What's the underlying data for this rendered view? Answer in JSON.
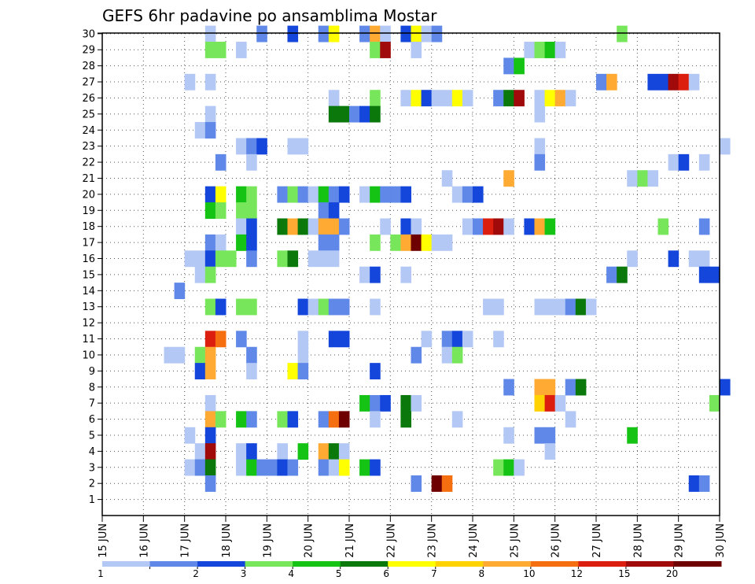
{
  "chart_data": {
    "type": "heatmap",
    "title": "GEFS 6hr padavine po ansamblima Mostar",
    "xlabel": "",
    "ylabel": "",
    "x_ticks": [
      "15 JUN",
      "16 JUN",
      "17 JUN",
      "18 JUN",
      "19 JUN",
      "20 JUN",
      "21 JUN",
      "22 JUN",
      "23 JUN",
      "24 JUN",
      "25 JUN",
      "26 JUN",
      "27 JUN",
      "28 JUN",
      "29 JUN",
      "30 JUN"
    ],
    "x_range_days": [
      15,
      30
    ],
    "y_ticks": [
      "1",
      "2",
      "3",
      "4",
      "5",
      "6",
      "7",
      "8",
      "9",
      "10",
      "11",
      "12",
      "13",
      "14",
      "15",
      "16",
      "17",
      "18",
      "19",
      "20",
      "21",
      "22",
      "23",
      "24",
      "25",
      "26",
      "27",
      "28",
      "29",
      "30"
    ],
    "y_range": [
      0,
      30
    ],
    "grid": true,
    "colorbar": {
      "levels": [
        "1",
        "2",
        "3",
        "4",
        "5",
        "6",
        "7",
        "8",
        "10",
        "12",
        "15",
        "20"
      ],
      "colors": [
        "#b4c8f5",
        "#5f88e8",
        "#1446dc",
        "#78e65a",
        "#14c314",
        "#0a780a",
        "#ffff00",
        "#ffd200",
        "#ffaa32",
        "#f56e0f",
        "#dc1e0f",
        "#a00a0a",
        "#6e0000"
      ]
    },
    "cells_note": "each cell: [start_day, member, color_class_index]",
    "cells": [
      [
        17.5,
        30,
        0
      ],
      [
        18.75,
        30,
        1
      ],
      [
        19.5,
        30,
        2
      ],
      [
        20.25,
        30,
        1
      ],
      [
        20.5,
        30,
        6
      ],
      [
        21.25,
        30,
        1
      ],
      [
        21.5,
        30,
        8
      ],
      [
        21.75,
        30,
        0
      ],
      [
        22.25,
        30,
        2
      ],
      [
        22.5,
        30,
        6
      ],
      [
        22.75,
        30,
        0
      ],
      [
        23,
        30,
        1
      ],
      [
        27.5,
        30,
        3
      ],
      [
        17.5,
        29,
        3
      ],
      [
        17.75,
        29,
        3
      ],
      [
        18.25,
        29,
        0
      ],
      [
        21.5,
        29,
        3
      ],
      [
        21.75,
        29,
        11
      ],
      [
        22.5,
        29,
        0
      ],
      [
        25.25,
        29,
        0
      ],
      [
        25.5,
        29,
        3
      ],
      [
        25.75,
        29,
        4
      ],
      [
        26,
        29,
        0
      ],
      [
        24.75,
        28,
        1
      ],
      [
        25,
        28,
        4
      ],
      [
        17,
        27,
        0
      ],
      [
        17.5,
        27,
        0
      ],
      [
        27,
        27,
        1
      ],
      [
        27.25,
        27,
        8
      ],
      [
        28.25,
        27,
        2
      ],
      [
        28.5,
        27,
        2
      ],
      [
        28.75,
        27,
        11
      ],
      [
        29,
        27,
        10
      ],
      [
        29.25,
        27,
        0
      ],
      [
        20.5,
        26,
        0
      ],
      [
        21.5,
        26,
        3
      ],
      [
        22.25,
        26,
        0
      ],
      [
        22.5,
        26,
        6
      ],
      [
        22.75,
        26,
        2
      ],
      [
        23,
        26,
        0
      ],
      [
        23.25,
        26,
        0
      ],
      [
        23.5,
        26,
        6
      ],
      [
        23.75,
        26,
        0
      ],
      [
        24.5,
        26,
        1
      ],
      [
        24.75,
        26,
        5
      ],
      [
        25,
        26,
        11
      ],
      [
        25.5,
        26,
        0
      ],
      [
        25.75,
        26,
        6
      ],
      [
        26,
        26,
        8
      ],
      [
        26.25,
        26,
        0
      ],
      [
        17.5,
        25,
        0
      ],
      [
        20.5,
        25,
        5
      ],
      [
        20.75,
        25,
        5
      ],
      [
        21,
        25,
        1
      ],
      [
        21.25,
        25,
        2
      ],
      [
        21.5,
        25,
        5
      ],
      [
        25.5,
        25,
        0
      ],
      [
        17.25,
        24,
        0
      ],
      [
        17.5,
        24,
        1
      ],
      [
        18.25,
        23,
        0
      ],
      [
        18.5,
        23,
        1
      ],
      [
        18.75,
        23,
        2
      ],
      [
        19.5,
        23,
        0
      ],
      [
        19.75,
        23,
        0
      ],
      [
        25.5,
        23,
        0
      ],
      [
        30,
        23,
        0
      ],
      [
        17.75,
        22,
        1
      ],
      [
        18.5,
        22,
        0
      ],
      [
        25.5,
        22,
        1
      ],
      [
        28.75,
        22,
        0
      ],
      [
        29,
        22,
        2
      ],
      [
        29.5,
        22,
        0
      ],
      [
        23.25,
        21,
        0
      ],
      [
        24.75,
        21,
        8
      ],
      [
        27.75,
        21,
        0
      ],
      [
        28,
        21,
        3
      ],
      [
        28.25,
        21,
        0
      ],
      [
        17.5,
        20,
        2
      ],
      [
        17.75,
        20,
        6
      ],
      [
        18.25,
        20,
        4
      ],
      [
        18.5,
        20,
        3
      ],
      [
        19.25,
        20,
        1
      ],
      [
        19.5,
        20,
        3
      ],
      [
        19.75,
        20,
        1
      ],
      [
        20,
        20,
        0
      ],
      [
        20.25,
        20,
        4
      ],
      [
        20.5,
        20,
        1
      ],
      [
        20.75,
        20,
        2
      ],
      [
        21.25,
        20,
        0
      ],
      [
        21.5,
        20,
        4
      ],
      [
        21.75,
        20,
        1
      ],
      [
        22,
        20,
        1
      ],
      [
        22.25,
        20,
        2
      ],
      [
        23.5,
        20,
        0
      ],
      [
        23.75,
        20,
        1
      ],
      [
        24,
        20,
        2
      ],
      [
        17.5,
        19,
        4
      ],
      [
        17.75,
        19,
        3
      ],
      [
        18.25,
        19,
        3
      ],
      [
        18.5,
        19,
        3
      ],
      [
        20.25,
        19,
        1
      ],
      [
        20.5,
        19,
        2
      ],
      [
        18.25,
        18,
        0
      ],
      [
        18.5,
        18,
        2
      ],
      [
        19.25,
        18,
        5
      ],
      [
        19.5,
        18,
        8
      ],
      [
        19.75,
        18,
        5
      ],
      [
        20,
        18,
        0
      ],
      [
        20.25,
        18,
        8
      ],
      [
        20.5,
        18,
        8
      ],
      [
        20.75,
        18,
        1
      ],
      [
        21.75,
        18,
        0
      ],
      [
        22.25,
        18,
        2
      ],
      [
        22.5,
        18,
        0
      ],
      [
        23.75,
        18,
        0
      ],
      [
        24,
        18,
        1
      ],
      [
        24.25,
        18,
        10
      ],
      [
        24.5,
        18,
        11
      ],
      [
        24.75,
        18,
        0
      ],
      [
        25.25,
        18,
        2
      ],
      [
        25.5,
        18,
        8
      ],
      [
        25.75,
        18,
        4
      ],
      [
        28.5,
        18,
        3
      ],
      [
        29.5,
        18,
        1
      ],
      [
        17.5,
        17,
        1
      ],
      [
        17.75,
        17,
        0
      ],
      [
        18.25,
        17,
        4
      ],
      [
        18.5,
        17,
        2
      ],
      [
        20.25,
        17,
        1
      ],
      [
        20.5,
        17,
        1
      ],
      [
        21.5,
        17,
        3
      ],
      [
        22,
        17,
        3
      ],
      [
        22.25,
        17,
        8
      ],
      [
        22.5,
        17,
        12
      ],
      [
        22.75,
        17,
        6
      ],
      [
        23,
        17,
        0
      ],
      [
        23.25,
        17,
        0
      ],
      [
        17,
        16,
        0
      ],
      [
        17.25,
        16,
        0
      ],
      [
        17.5,
        16,
        2
      ],
      [
        17.75,
        16,
        3
      ],
      [
        18,
        16,
        3
      ],
      [
        18.5,
        16,
        1
      ],
      [
        19.25,
        16,
        3
      ],
      [
        19.5,
        16,
        5
      ],
      [
        20,
        16,
        0
      ],
      [
        20.25,
        16,
        0
      ],
      [
        20.5,
        16,
        0
      ],
      [
        27.75,
        16,
        0
      ],
      [
        28.75,
        16,
        2
      ],
      [
        29.25,
        16,
        0
      ],
      [
        29.5,
        16,
        0
      ],
      [
        17.25,
        15,
        0
      ],
      [
        17.5,
        15,
        3
      ],
      [
        21.25,
        15,
        0
      ],
      [
        21.5,
        15,
        2
      ],
      [
        22.25,
        15,
        0
      ],
      [
        27.25,
        15,
        1
      ],
      [
        27.5,
        15,
        5
      ],
      [
        29.5,
        15,
        2
      ],
      [
        29.75,
        15,
        2
      ],
      [
        16.75,
        14,
        1
      ],
      [
        17.5,
        13,
        3
      ],
      [
        17.75,
        13,
        2
      ],
      [
        18.25,
        13,
        3
      ],
      [
        18.5,
        13,
        3
      ],
      [
        19.75,
        13,
        2
      ],
      [
        20,
        13,
        0
      ],
      [
        20.25,
        13,
        3
      ],
      [
        20.5,
        13,
        1
      ],
      [
        20.75,
        13,
        1
      ],
      [
        21.5,
        13,
        0
      ],
      [
        24.25,
        13,
        0
      ],
      [
        24.5,
        13,
        0
      ],
      [
        25.5,
        13,
        0
      ],
      [
        25.75,
        13,
        0
      ],
      [
        26,
        13,
        0
      ],
      [
        26.25,
        13,
        1
      ],
      [
        26.5,
        13,
        5
      ],
      [
        26.75,
        13,
        0
      ],
      [
        17.5,
        11,
        10
      ],
      [
        17.75,
        11,
        9
      ],
      [
        18.25,
        11,
        1
      ],
      [
        19.75,
        11,
        0
      ],
      [
        20.5,
        11,
        2
      ],
      [
        20.75,
        11,
        2
      ],
      [
        22.75,
        11,
        0
      ],
      [
        23.25,
        11,
        1
      ],
      [
        23.5,
        11,
        2
      ],
      [
        23.75,
        11,
        0
      ],
      [
        24.5,
        11,
        0
      ],
      [
        16.5,
        10,
        0
      ],
      [
        16.75,
        10,
        0
      ],
      [
        17.25,
        10,
        3
      ],
      [
        17.5,
        10,
        8
      ],
      [
        18.5,
        10,
        1
      ],
      [
        19.75,
        10,
        0
      ],
      [
        22.5,
        10,
        1
      ],
      [
        23.25,
        10,
        0
      ],
      [
        23.5,
        10,
        3
      ],
      [
        17.25,
        9,
        2
      ],
      [
        17.5,
        9,
        8
      ],
      [
        18.5,
        9,
        0
      ],
      [
        19.5,
        9,
        6
      ],
      [
        19.75,
        9,
        1
      ],
      [
        21.5,
        9,
        2
      ],
      [
        24.75,
        8,
        1
      ],
      [
        25.5,
        8,
        8
      ],
      [
        25.75,
        8,
        8
      ],
      [
        26.25,
        8,
        1
      ],
      [
        26.5,
        8,
        5
      ],
      [
        30,
        8,
        2
      ],
      [
        17.5,
        7,
        0
      ],
      [
        21.25,
        7,
        4
      ],
      [
        21.5,
        7,
        1
      ],
      [
        21.75,
        7,
        2
      ],
      [
        22.25,
        7,
        5
      ],
      [
        22.5,
        7,
        0
      ],
      [
        25.5,
        7,
        7
      ],
      [
        25.75,
        7,
        10
      ],
      [
        26,
        7,
        0
      ],
      [
        29.75,
        7,
        3
      ],
      [
        17.5,
        6,
        8
      ],
      [
        17.75,
        6,
        3
      ],
      [
        18.25,
        6,
        4
      ],
      [
        18.5,
        6,
        1
      ],
      [
        19.25,
        6,
        3
      ],
      [
        19.5,
        6,
        2
      ],
      [
        20.25,
        6,
        1
      ],
      [
        20.5,
        6,
        9
      ],
      [
        20.75,
        6,
        12
      ],
      [
        21.5,
        6,
        0
      ],
      [
        22.25,
        6,
        5
      ],
      [
        23.5,
        6,
        0
      ],
      [
        26.25,
        6,
        0
      ],
      [
        17.5,
        5,
        2
      ],
      [
        17,
        5,
        0
      ],
      [
        24.75,
        5,
        0
      ],
      [
        25.5,
        5,
        1
      ],
      [
        25.75,
        5,
        1
      ],
      [
        27.75,
        5,
        4
      ],
      [
        17.25,
        4,
        0
      ],
      [
        17.5,
        4,
        11
      ],
      [
        18.25,
        4,
        0
      ],
      [
        18.5,
        4,
        2
      ],
      [
        19.25,
        4,
        0
      ],
      [
        19.75,
        4,
        4
      ],
      [
        20.25,
        4,
        8
      ],
      [
        20.5,
        4,
        5
      ],
      [
        20.75,
        4,
        0
      ],
      [
        25.75,
        4,
        0
      ],
      [
        17,
        3,
        0
      ],
      [
        17.25,
        3,
        1
      ],
      [
        17.5,
        3,
        5
      ],
      [
        18.25,
        3,
        0
      ],
      [
        18.5,
        3,
        4
      ],
      [
        18.75,
        3,
        1
      ],
      [
        19,
        3,
        1
      ],
      [
        19.25,
        3,
        2
      ],
      [
        19.5,
        3,
        1
      ],
      [
        20.25,
        3,
        1
      ],
      [
        20.5,
        3,
        0
      ],
      [
        20.75,
        3,
        6
      ],
      [
        21.25,
        3,
        4
      ],
      [
        21.5,
        3,
        2
      ],
      [
        24.5,
        3,
        3
      ],
      [
        24.75,
        3,
        4
      ],
      [
        25,
        3,
        0
      ],
      [
        17.5,
        2,
        1
      ],
      [
        22.5,
        2,
        1
      ],
      [
        23,
        2,
        12
      ],
      [
        23.25,
        2,
        9
      ],
      [
        29.25,
        2,
        2
      ],
      [
        29.5,
        2,
        1
      ]
    ]
  }
}
